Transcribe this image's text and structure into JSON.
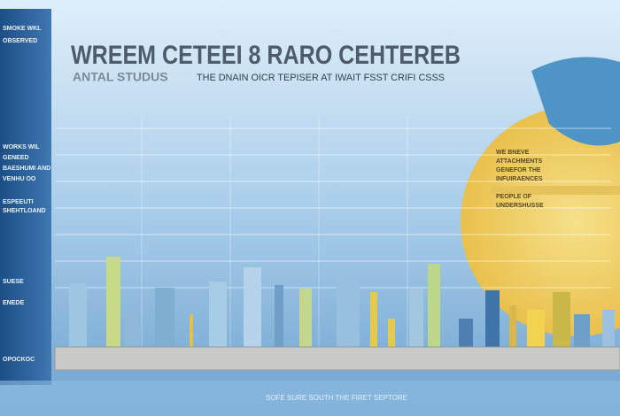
{
  "header": {
    "title": "WREEM CETEEI 8 RARO CEHTEREB",
    "subtitle": "ANTAL STUDUS",
    "tagline": "THE DNAIN OICR TEPISER AT IWAIT FSST CRIFI CSSS"
  },
  "sidebar": {
    "items": [
      "SMOKE WKL",
      "OBSERVED",
      "WORKS WIL",
      "GENEED",
      "BAESHUMI AND",
      "VENHU OO",
      "ESPEEUTI",
      "SHEHTLOAND",
      "SUESE",
      "ENEDE",
      "OPOCKOC"
    ]
  },
  "panel": {
    "lines": [
      "WE BNEVE",
      "ATTACHMENTS",
      "GENEFOR THE",
      "INFUIRAENCES",
      "PEOPLE OF",
      "UNDERSHUSSE"
    ]
  },
  "footer": {
    "text": "SOFE SURE SOUTH THE FIRET SEPTORE"
  }
}
